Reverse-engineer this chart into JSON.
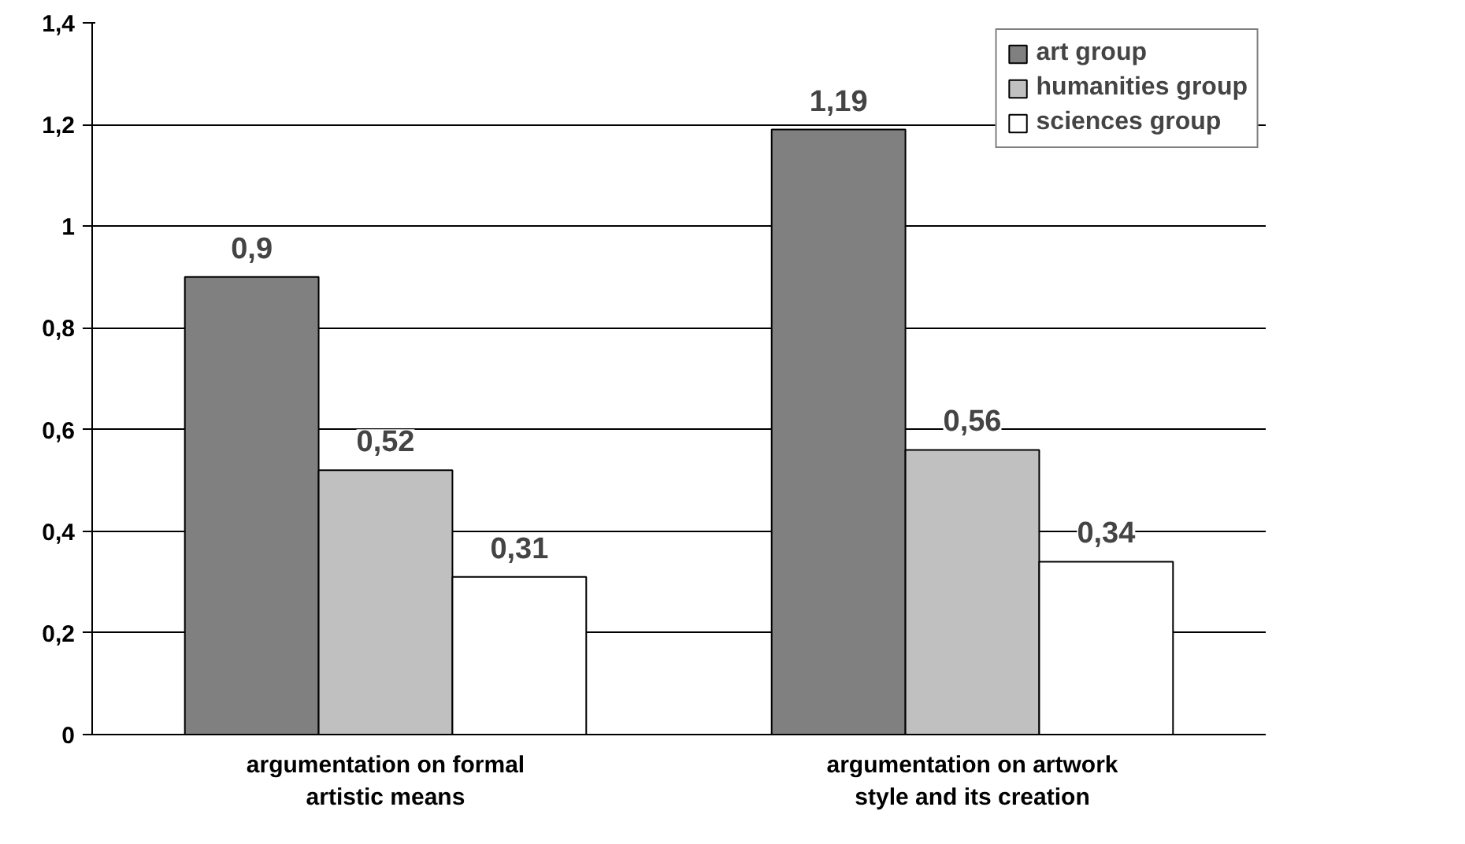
{
  "chart_data": {
    "type": "bar",
    "categories": [
      "argumentation on formal artistic means",
      "argumentation on artwork style and its creation"
    ],
    "series": [
      {
        "name": "art group",
        "color": "#808080",
        "values": [
          0.9,
          1.19
        ],
        "value_labels": [
          "0,9",
          "1,19"
        ]
      },
      {
        "name": "humanities group",
        "color": "#c0c0c0",
        "values": [
          0.52,
          0.56
        ],
        "value_labels": [
          "0,52",
          "0,56"
        ]
      },
      {
        "name": "sciences group",
        "color": "#ffffff",
        "values": [
          0.31,
          0.34
        ],
        "value_labels": [
          "0,31",
          "0,34"
        ]
      }
    ],
    "ylim": [
      0,
      1.4
    ],
    "yticks": [
      0,
      {
        "value": 0.2,
        "label": "0,2"
      },
      {
        "value": 0.4,
        "label": "0,4"
      },
      {
        "value": 0.6,
        "label": "0,6"
      },
      {
        "value": 0.8,
        "label": "0,8"
      },
      1,
      {
        "value": 1.2,
        "label": "1,2"
      },
      {
        "value": 1.4,
        "label": "1,4"
      }
    ],
    "grid": "y",
    "legend": "top right"
  }
}
